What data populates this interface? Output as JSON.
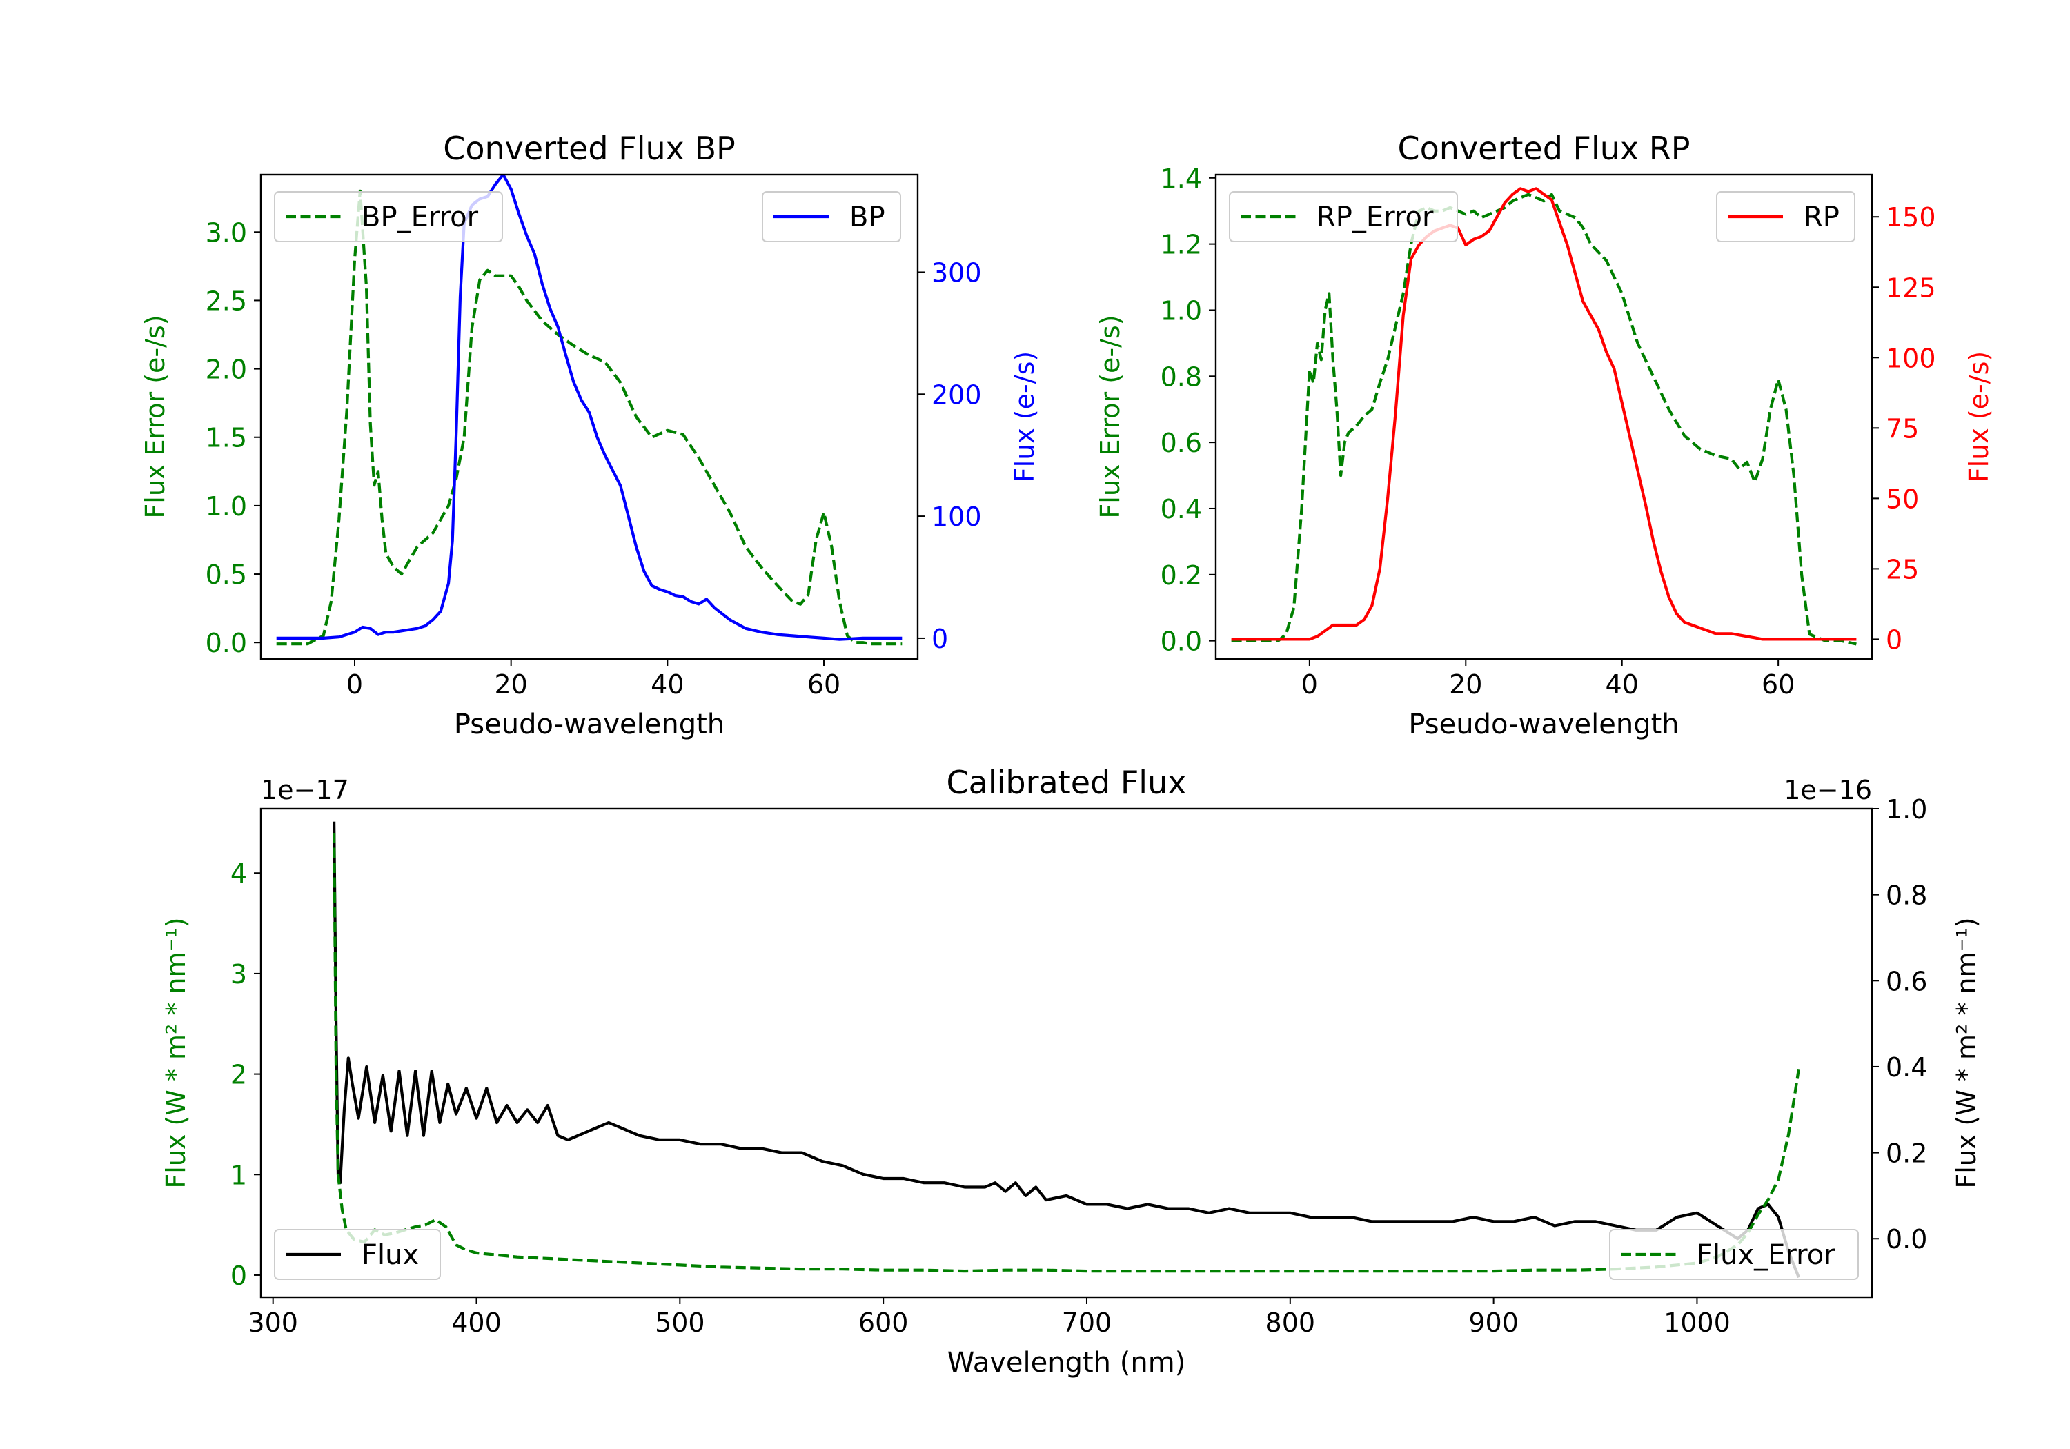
{
  "colors": {
    "error": "#008000",
    "bp": "#0000ff",
    "rp": "#ff0000",
    "flux": "#000000",
    "axis": "#000000"
  },
  "chart_data": [
    {
      "id": "bp",
      "type": "line",
      "title": "Converted Flux BP",
      "xlabel": "Pseudo-wavelength",
      "xlim": [
        -12,
        72
      ],
      "xticks": [
        0,
        20,
        40,
        60
      ],
      "left": {
        "ylabel": "Flux Error (e-/s)",
        "ylim": [
          -0.12,
          3.42
        ],
        "ticks": [
          0.0,
          0.5,
          1.0,
          1.5,
          2.0,
          2.5,
          3.0
        ],
        "ticklabels": [
          "0.0",
          "0.5",
          "1.0",
          "1.5",
          "2.0",
          "2.5",
          "3.0"
        ]
      },
      "right": {
        "ylabel": "Flux (e-/s)",
        "ylim": [
          -17,
          380
        ],
        "ticks": [
          0,
          100,
          200,
          300
        ],
        "ticklabels": [
          "0",
          "100",
          "200",
          "300"
        ]
      },
      "series": [
        {
          "name": "BP_Error",
          "axis": "left",
          "style": "dashed",
          "color": "#008000",
          "x": [
            -10,
            -6,
            -4,
            -3,
            -2,
            -1,
            0,
            0.7,
            1.5,
            2,
            2.5,
            3,
            3.5,
            4,
            5,
            6,
            7,
            8,
            10,
            12,
            13,
            14,
            15,
            16,
            17,
            18,
            20,
            21,
            22,
            24,
            26,
            28,
            30,
            32,
            34,
            36,
            38,
            40,
            42,
            44,
            46,
            48,
            50,
            52,
            54,
            56,
            57,
            58,
            59,
            60,
            61,
            62,
            63,
            64,
            65,
            66,
            68,
            70
          ],
          "y": [
            -0.01,
            -0.01,
            0.05,
            0.3,
            0.9,
            1.7,
            2.8,
            3.3,
            2.6,
            1.6,
            1.15,
            1.25,
            0.9,
            0.65,
            0.55,
            0.5,
            0.6,
            0.7,
            0.8,
            1.0,
            1.2,
            1.5,
            2.3,
            2.65,
            2.72,
            2.68,
            2.68,
            2.6,
            2.5,
            2.35,
            2.25,
            2.17,
            2.1,
            2.05,
            1.9,
            1.65,
            1.5,
            1.55,
            1.52,
            1.35,
            1.15,
            0.95,
            0.7,
            0.55,
            0.42,
            0.3,
            0.28,
            0.35,
            0.75,
            0.95,
            0.7,
            0.3,
            0.05,
            0.0,
            0.0,
            -0.01,
            -0.01,
            -0.01
          ]
        },
        {
          "name": "BP",
          "axis": "right",
          "style": "solid",
          "color": "#0000ff",
          "x": [
            -10,
            -4,
            -2,
            0,
            1,
            2,
            3,
            4,
            5,
            6,
            7,
            8,
            9,
            10,
            11,
            12,
            12.5,
            13,
            13.5,
            14,
            15,
            16,
            17,
            18,
            19,
            20,
            21,
            22,
            23,
            24,
            25,
            26,
            27,
            28,
            29,
            30,
            31,
            32,
            34,
            35,
            36,
            37,
            38,
            39,
            40,
            41,
            42,
            43,
            44,
            45,
            46,
            47,
            48,
            50,
            52,
            54,
            56,
            58,
            60,
            62,
            65,
            70
          ],
          "y": [
            0,
            0,
            1,
            5,
            9,
            8,
            3,
            5,
            5,
            6,
            7,
            8,
            10,
            15,
            22,
            45,
            80,
            170,
            280,
            340,
            355,
            360,
            362,
            372,
            380,
            368,
            348,
            330,
            315,
            290,
            270,
            255,
            232,
            210,
            195,
            185,
            165,
            150,
            125,
            100,
            75,
            55,
            43,
            40,
            38,
            35,
            34,
            30,
            28,
            32,
            25,
            20,
            15,
            8,
            5,
            3,
            2,
            1,
            0,
            -1,
            0,
            0
          ]
        }
      ]
    },
    {
      "id": "rp",
      "type": "line",
      "title": "Converted Flux RP",
      "xlabel": "Pseudo-wavelength",
      "xlim": [
        -12,
        72
      ],
      "xticks": [
        0,
        20,
        40,
        60
      ],
      "left": {
        "ylabel": "Flux Error (e-/s)",
        "ylim": [
          -0.055,
          1.41
        ],
        "ticks": [
          0.0,
          0.2,
          0.4,
          0.6,
          0.8,
          1.0,
          1.2,
          1.4
        ],
        "ticklabels": [
          "0.0",
          "0.2",
          "0.4",
          "0.6",
          "0.8",
          "1.0",
          "1.2",
          "1.4"
        ]
      },
      "right": {
        "ylabel": "Flux (e-/s)",
        "ylim": [
          -7,
          165
        ],
        "ticks": [
          0,
          25,
          50,
          75,
          100,
          125,
          150
        ],
        "ticklabels": [
          "0",
          "25",
          "50",
          "75",
          "100",
          "125",
          "150"
        ]
      },
      "series": [
        {
          "name": "RP_Error",
          "axis": "left",
          "style": "dashed",
          "color": "#008000",
          "x": [
            -10,
            -4,
            -3,
            -2,
            -1,
            0,
            0.5,
            1,
            1.5,
            2,
            2.5,
            3,
            3.5,
            4,
            4.5,
            5,
            6,
            7,
            8,
            9,
            10,
            11,
            12,
            13,
            14,
            15,
            16,
            17,
            18,
            19,
            20,
            21,
            22,
            23,
            24,
            25,
            26,
            27,
            28,
            29,
            30,
            31,
            32,
            33,
            34,
            35,
            36,
            38,
            40,
            42,
            44,
            46,
            48,
            50,
            52,
            54,
            55,
            56,
            57,
            58,
            59,
            60,
            61,
            62,
            63,
            64,
            66,
            68,
            70
          ],
          "y": [
            0,
            0,
            0.02,
            0.1,
            0.4,
            0.82,
            0.78,
            0.9,
            0.85,
            1.0,
            1.05,
            0.85,
            0.7,
            0.5,
            0.6,
            0.63,
            0.65,
            0.68,
            0.7,
            0.78,
            0.85,
            0.95,
            1.05,
            1.2,
            1.3,
            1.31,
            1.3,
            1.3,
            1.31,
            1.3,
            1.29,
            1.3,
            1.28,
            1.29,
            1.3,
            1.31,
            1.33,
            1.34,
            1.35,
            1.34,
            1.33,
            1.35,
            1.3,
            1.29,
            1.28,
            1.25,
            1.2,
            1.15,
            1.05,
            0.9,
            0.8,
            0.7,
            0.62,
            0.58,
            0.56,
            0.55,
            0.52,
            0.54,
            0.48,
            0.55,
            0.7,
            0.79,
            0.7,
            0.5,
            0.2,
            0.02,
            0.0,
            0.0,
            -0.01
          ]
        },
        {
          "name": "RP",
          "axis": "right",
          "style": "solid",
          "color": "#ff0000",
          "x": [
            -10,
            -4,
            -2,
            0,
            1,
            2,
            3,
            4,
            5,
            6,
            7,
            8,
            9,
            10,
            11,
            12,
            13,
            14,
            15,
            16,
            17,
            18,
            19,
            20,
            21,
            22,
            23,
            24,
            25,
            26,
            27,
            28,
            29,
            30,
            31,
            32,
            33,
            34,
            35,
            36,
            37,
            38,
            39,
            40,
            41,
            42,
            43,
            44,
            45,
            46,
            47,
            48,
            49,
            50,
            51,
            52,
            54,
            56,
            58,
            60,
            62,
            65,
            70
          ],
          "y": [
            0,
            0,
            0,
            0,
            1,
            3,
            5,
            5,
            5,
            5,
            7,
            12,
            25,
            50,
            80,
            115,
            135,
            140,
            143,
            145,
            146,
            147,
            146,
            140,
            142,
            143,
            145,
            150,
            155,
            158,
            160,
            159,
            160,
            158,
            156,
            148,
            140,
            130,
            120,
            115,
            110,
            102,
            96,
            84,
            72,
            60,
            48,
            35,
            24,
            15,
            9,
            6,
            5,
            4,
            3,
            2,
            2,
            1,
            0,
            0,
            0,
            0,
            0
          ]
        }
      ]
    },
    {
      "id": "cal",
      "type": "line",
      "title": "Calibrated Flux",
      "xlabel": "Wavelength (nm)",
      "xlim": [
        294,
        1086
      ],
      "xticks": [
        300,
        400,
        500,
        600,
        700,
        800,
        900,
        1000
      ],
      "left": {
        "ylabel": "Flux (W * m² * nm⁻¹)",
        "ylim": [
          -0.22,
          4.64
        ],
        "ticks": [
          0,
          1,
          2,
          3,
          4
        ],
        "ticklabels": [
          "0",
          "1",
          "2",
          "3",
          "4"
        ],
        "offset": "1e−17"
      },
      "right": {
        "ylabel": "Flux (W * m² * nm⁻¹)",
        "ylim": [
          -0.136,
          1.0
        ],
        "ticks": [
          0.0,
          0.2,
          0.4,
          0.6,
          0.8,
          1.0
        ],
        "ticklabels": [
          "0.0",
          "0.2",
          "0.4",
          "0.6",
          "0.8",
          "1.0"
        ],
        "offset": "1e−16"
      },
      "series": [
        {
          "name": "Flux",
          "axis": "right",
          "style": "solid",
          "color": "#000000",
          "x": [
            330,
            331,
            332,
            333,
            335,
            337,
            339,
            342,
            346,
            350,
            354,
            358,
            362,
            366,
            370,
            374,
            378,
            382,
            386,
            390,
            395,
            400,
            405,
            410,
            415,
            420,
            425,
            430,
            435,
            440,
            445,
            450,
            455,
            460,
            465,
            470,
            475,
            480,
            490,
            500,
            510,
            520,
            530,
            540,
            550,
            560,
            570,
            580,
            590,
            600,
            610,
            620,
            630,
            640,
            650,
            655,
            660,
            665,
            670,
            675,
            680,
            690,
            700,
            710,
            720,
            730,
            740,
            750,
            760,
            770,
            780,
            790,
            800,
            810,
            820,
            830,
            840,
            850,
            860,
            870,
            880,
            890,
            900,
            910,
            920,
            930,
            940,
            950,
            960,
            970,
            980,
            990,
            1000,
            1010,
            1020,
            1025,
            1030,
            1035,
            1040,
            1045,
            1050
          ],
          "y": [
            0.97,
            0.5,
            0.15,
            0.13,
            0.3,
            0.42,
            0.36,
            0.28,
            0.4,
            0.27,
            0.38,
            0.25,
            0.39,
            0.24,
            0.39,
            0.24,
            0.39,
            0.27,
            0.36,
            0.29,
            0.35,
            0.28,
            0.35,
            0.27,
            0.31,
            0.27,
            0.3,
            0.27,
            0.31,
            0.24,
            0.23,
            0.24,
            0.25,
            0.26,
            0.27,
            0.26,
            0.25,
            0.24,
            0.23,
            0.23,
            0.22,
            0.22,
            0.21,
            0.21,
            0.2,
            0.2,
            0.18,
            0.17,
            0.15,
            0.14,
            0.14,
            0.13,
            0.13,
            0.12,
            0.12,
            0.13,
            0.11,
            0.13,
            0.1,
            0.12,
            0.09,
            0.1,
            0.08,
            0.08,
            0.07,
            0.08,
            0.07,
            0.07,
            0.06,
            0.07,
            0.06,
            0.06,
            0.06,
            0.05,
            0.05,
            0.05,
            0.04,
            0.04,
            0.04,
            0.04,
            0.04,
            0.05,
            0.04,
            0.04,
            0.05,
            0.03,
            0.04,
            0.04,
            0.03,
            0.02,
            0.02,
            0.05,
            0.06,
            0.03,
            0.0,
            0.02,
            0.07,
            0.08,
            0.05,
            -0.03,
            -0.09
          ]
        },
        {
          "name": "Flux_Error",
          "axis": "left",
          "style": "dashed",
          "color": "#008000",
          "x": [
            330,
            331,
            332,
            334,
            336,
            340,
            345,
            350,
            355,
            360,
            365,
            370,
            375,
            380,
            385,
            390,
            395,
            400,
            410,
            420,
            430,
            440,
            450,
            460,
            470,
            480,
            500,
            520,
            540,
            560,
            580,
            600,
            620,
            640,
            660,
            680,
            700,
            720,
            740,
            760,
            780,
            800,
            820,
            840,
            860,
            880,
            900,
            920,
            940,
            960,
            980,
            1000,
            1010,
            1020,
            1025,
            1030,
            1035,
            1040,
            1045,
            1050
          ],
          "y": [
            4.4,
            2.0,
            1.0,
            0.65,
            0.45,
            0.35,
            0.33,
            0.45,
            0.4,
            0.42,
            0.45,
            0.48,
            0.5,
            0.55,
            0.48,
            0.3,
            0.25,
            0.22,
            0.2,
            0.18,
            0.17,
            0.16,
            0.15,
            0.14,
            0.13,
            0.12,
            0.1,
            0.08,
            0.07,
            0.06,
            0.06,
            0.05,
            0.05,
            0.04,
            0.05,
            0.05,
            0.04,
            0.04,
            0.04,
            0.04,
            0.04,
            0.04,
            0.04,
            0.04,
            0.04,
            0.04,
            0.04,
            0.05,
            0.05,
            0.06,
            0.08,
            0.12,
            0.18,
            0.3,
            0.42,
            0.6,
            0.75,
            0.95,
            1.4,
            2.05
          ]
        }
      ]
    }
  ]
}
